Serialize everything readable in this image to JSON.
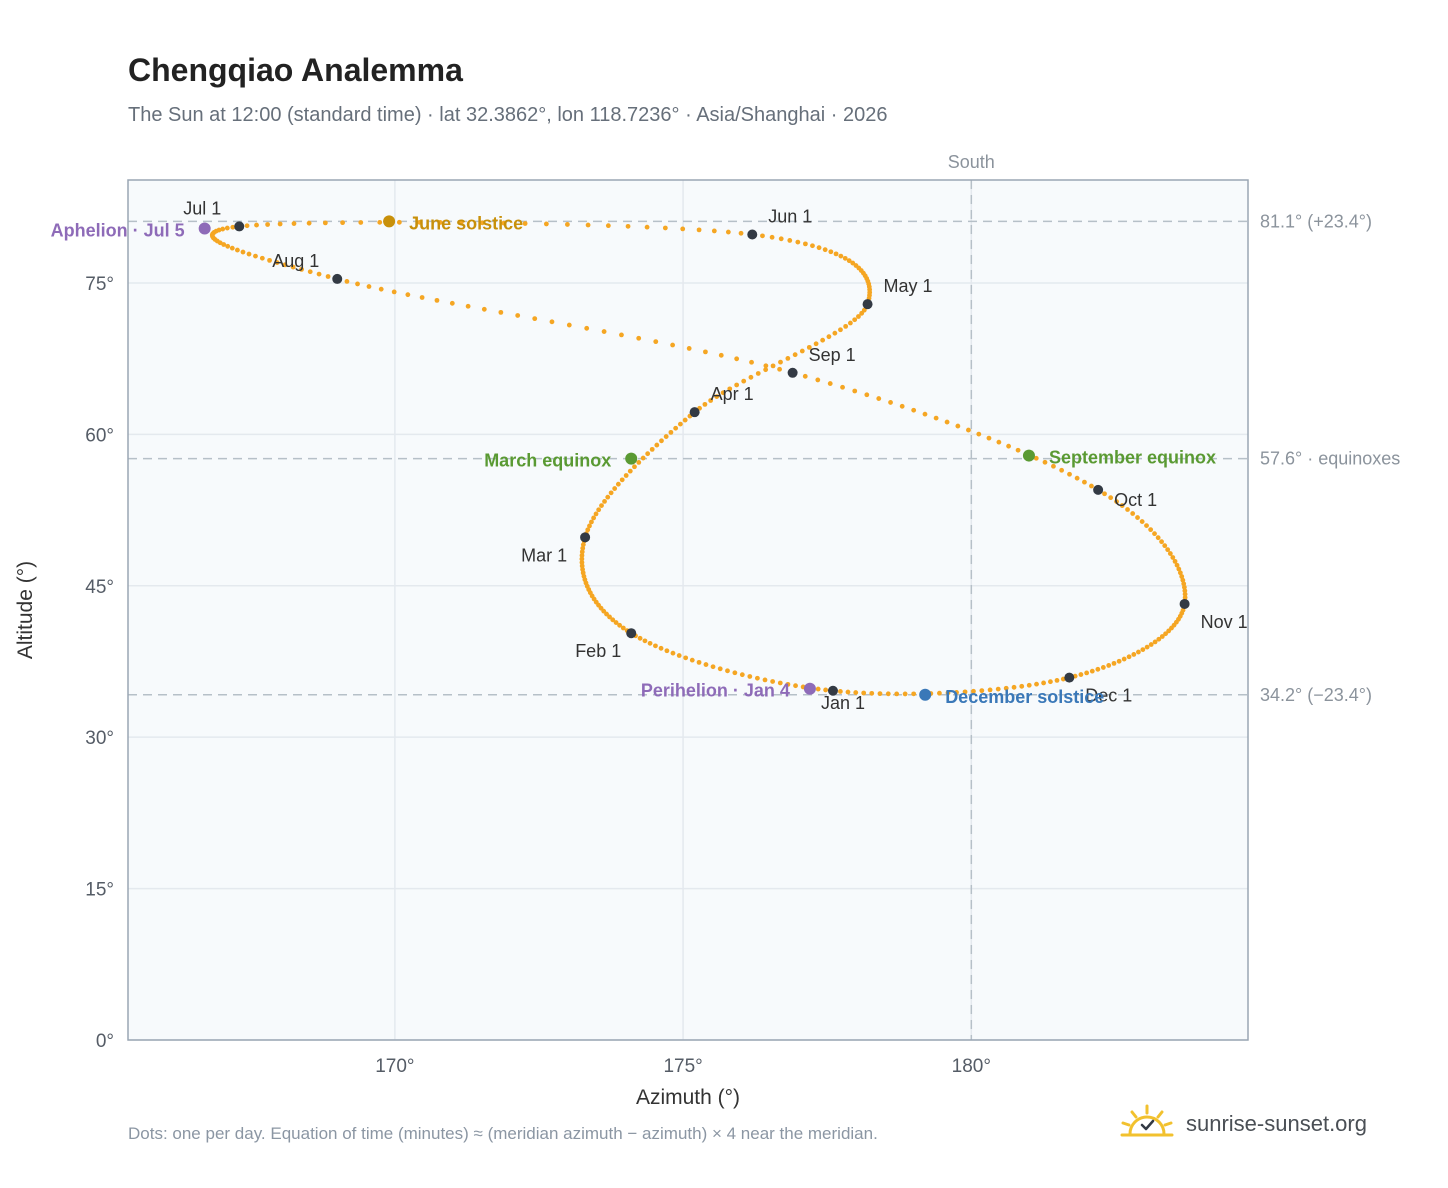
{
  "title": "Chengqiao Analemma",
  "subtitle": "The Sun at 12:00 (standard time) · lat 32.3862°, lon 118.7236° · Asia/Shanghai · 2026",
  "footnote": "Dots: one per day. Equation of time (minutes) ≈ (meridian azimuth − azimuth) × 4 near the meridian.",
  "brand": {
    "text": "sunrise-sunset.org",
    "icon": "sun-logo-icon",
    "icon_color": "#f2c12e"
  },
  "colors": {
    "path": "#f5a623",
    "month_dot": "#333a44",
    "solstice_june": "#c8900a",
    "solstice_december": "#3a78b8",
    "equinox": "#5a9a33",
    "apsis": "#8e6bb8",
    "plot_bg": "#f7fafc",
    "grid": "#e4e9ee",
    "ref_line": "#b6c0c8",
    "frame": "#9aa6b4"
  },
  "chart_data": {
    "type": "scatter",
    "xlabel": "Azimuth (°)",
    "ylabel": "Altitude (°)",
    "xlim": [
      165.37,
      184.8
    ],
    "ylim": [
      0,
      85.2
    ],
    "x_ticks": [
      170,
      175,
      180
    ],
    "x_tick_labels": [
      "170°",
      "175°",
      "180°"
    ],
    "y_ticks": [
      0,
      15,
      30,
      45,
      60,
      75
    ],
    "y_tick_labels": [
      "0°",
      "15°",
      "30°",
      "45°",
      "60°",
      "75°"
    ],
    "grid": true,
    "meridian": {
      "azimuth": 180,
      "label": "South"
    },
    "reference_lines": [
      {
        "altitude": 81.1,
        "label": "81.1° (+23.4°)"
      },
      {
        "altitude": 57.6,
        "label": "57.6° · equinoxes"
      },
      {
        "altitude": 34.2,
        "label": "34.2° (−23.4°)"
      }
    ],
    "path_note": "one dot per day through 2026; the figure-eight passes through the month points in order",
    "months": [
      {
        "label": "Jan 1",
        "az": 177.6,
        "alt": 34.6
      },
      {
        "label": "Feb 1",
        "az": 174.1,
        "alt": 40.3
      },
      {
        "label": "Mar 1",
        "az": 173.3,
        "alt": 49.8
      },
      {
        "label": "Apr 1",
        "az": 175.2,
        "alt": 62.2
      },
      {
        "label": "May 1",
        "az": 178.2,
        "alt": 72.9
      },
      {
        "label": "Jun 1",
        "az": 176.2,
        "alt": 79.8
      },
      {
        "label": "Jul 1",
        "az": 167.3,
        "alt": 80.6
      },
      {
        "label": "Aug 1",
        "az": 169.0,
        "alt": 75.4
      },
      {
        "label": "Sep 1",
        "az": 176.9,
        "alt": 66.1
      },
      {
        "label": "Oct 1",
        "az": 182.2,
        "alt": 54.5
      },
      {
        "label": "Nov 1",
        "az": 183.7,
        "alt": 43.2
      },
      {
        "label": "Dec 1",
        "az": 181.7,
        "alt": 35.9
      }
    ],
    "events": [
      {
        "label": "June solstice",
        "az": 169.9,
        "alt": 81.1,
        "kind": "solstice_june"
      },
      {
        "label": "December solstice",
        "az": 179.2,
        "alt": 34.2,
        "kind": "solstice_december"
      },
      {
        "label": "March equinox",
        "az": 174.1,
        "alt": 57.6,
        "kind": "equinox"
      },
      {
        "label": "September equinox",
        "az": 181.0,
        "alt": 57.9,
        "kind": "equinox"
      },
      {
        "label": "Aphelion · Jul 5",
        "az": 166.7,
        "alt": 80.4,
        "kind": "apsis"
      },
      {
        "label": "Perihelion · Jan 4",
        "az": 177.2,
        "alt": 34.8,
        "kind": "apsis"
      }
    ]
  }
}
